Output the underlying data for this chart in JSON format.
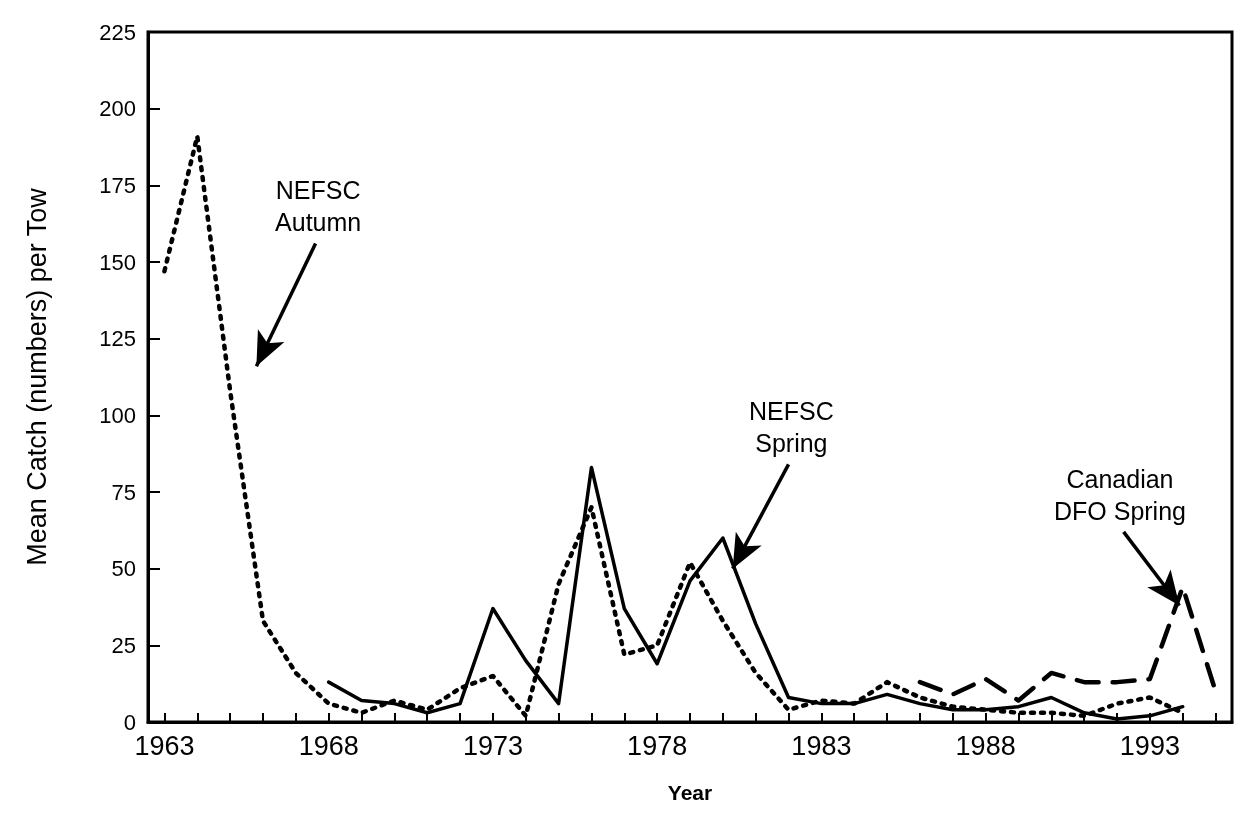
{
  "chart_data": {
    "type": "line",
    "xlabel": "Year",
    "ylabel": "Mean Catch (numbers) per Tow",
    "xlim": [
      1962.5,
      1995.5
    ],
    "xticks": [
      1963,
      {
        "value": 1964,
        "label": null
      },
      {
        "value": 1965,
        "label": null
      },
      {
        "value": 1966,
        "label": null
      },
      {
        "value": 1967,
        "label": null
      },
      1968,
      {
        "value": 1969,
        "label": null
      },
      {
        "value": 1970,
        "label": null
      },
      {
        "value": 1971,
        "label": null
      },
      {
        "value": 1972,
        "label": null
      },
      1973,
      {
        "value": 1974,
        "label": null
      },
      {
        "value": 1975,
        "label": null
      },
      {
        "value": 1976,
        "label": null
      },
      {
        "value": 1977,
        "label": null
      },
      1978,
      {
        "value": 1979,
        "label": null
      },
      {
        "value": 1980,
        "label": null
      },
      {
        "value": 1981,
        "label": null
      },
      {
        "value": 1982,
        "label": null
      },
      1983,
      {
        "value": 1984,
        "label": null
      },
      {
        "value": 1985,
        "label": null
      },
      {
        "value": 1986,
        "label": null
      },
      {
        "value": 1987,
        "label": null
      },
      1988,
      {
        "value": 1989,
        "label": null
      },
      {
        "value": 1990,
        "label": null
      },
      {
        "value": 1991,
        "label": null
      },
      {
        "value": 1992,
        "label": null
      },
      1993,
      {
        "value": 1994,
        "label": null
      },
      {
        "value": 1995,
        "label": null
      }
    ],
    "ylim": [
      0,
      225
    ],
    "yticks": [
      0,
      25,
      50,
      75,
      100,
      125,
      150,
      175,
      200,
      225
    ],
    "grid": false,
    "legend": false,
    "marker": "none",
    "series": [
      {
        "name": "NEFSC Autumn",
        "color": "#000000",
        "line_style": "dotted",
        "x": [
          1963,
          1964,
          1965,
          1966,
          1967,
          1968,
          1969,
          1970,
          1971,
          1972,
          1973,
          1974,
          1975,
          1976,
          1977,
          1978,
          1979,
          1980,
          1981,
          1982,
          1983,
          1984,
          1985,
          1986,
          1987,
          1988,
          1989,
          1990,
          1991,
          1992,
          1993,
          1994
        ],
        "values": [
          147,
          191,
          108,
          33,
          16,
          6,
          3,
          7,
          4,
          11,
          15,
          2,
          45,
          70,
          22,
          25,
          52,
          33,
          16,
          4,
          7,
          6,
          13,
          8,
          5,
          4,
          3,
          3,
          2,
          6,
          8,
          3
        ]
      },
      {
        "name": "NEFSC Spring",
        "color": "#000000",
        "line_style": "solid",
        "x": [
          1968,
          1969,
          1970,
          1971,
          1972,
          1973,
          1974,
          1975,
          1976,
          1977,
          1978,
          1979,
          1980,
          1981,
          1982,
          1983,
          1984,
          1985,
          1986,
          1987,
          1988,
          1989,
          1990,
          1991,
          1992,
          1993,
          1994
        ],
        "values": [
          13,
          7,
          6,
          3,
          6,
          37,
          20,
          6,
          83,
          37,
          19,
          46,
          60,
          32,
          8,
          6,
          6,
          9,
          6,
          4,
          4,
          5,
          8,
          3,
          1,
          2,
          5
        ]
      },
      {
        "name": "Canadian DFO Spring",
        "color": "#000000",
        "line_style": "dashed",
        "x": [
          1986,
          1987,
          1988,
          1989,
          1990,
          1991,
          1992,
          1993,
          1994,
          1995
        ],
        "values": [
          13,
          9,
          14,
          7,
          16,
          13,
          13,
          14,
          44,
          10
        ]
      }
    ]
  }
}
